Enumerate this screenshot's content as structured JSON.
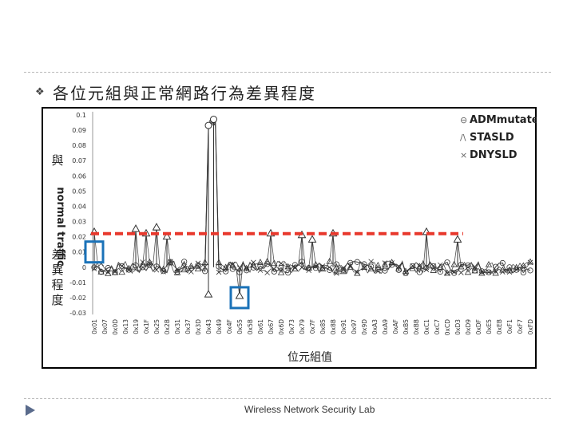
{
  "slide": {
    "title": "各位元組與正常網路行為差異程度",
    "footer": "Wireless Network Security Lab"
  },
  "colors": {
    "threshold_line": "#e8382c",
    "highlight_box": "#1a72b8",
    "series": "#333333",
    "footer_arrow": "#5a6b8c"
  },
  "chart_data": {
    "type": "line",
    "xlabel": "位元組值",
    "ylabel_lines": [
      "與",
      "normal traffic",
      "差",
      "異",
      "程",
      "度"
    ],
    "ylim": [
      -0.03,
      0.1
    ],
    "yticks": [
      "0.1",
      "0.09",
      "0.08",
      "0.07",
      "0.06",
      "0.05",
      "0.04",
      "0.03",
      "0.02",
      "0.01",
      "0",
      "-0.01",
      "-0.02",
      "-0.03"
    ],
    "ytick_values": [
      0.1,
      0.09,
      0.08,
      0.07,
      0.06,
      0.05,
      0.04,
      0.03,
      0.02,
      0.01,
      0,
      -0.01,
      -0.02,
      -0.03
    ],
    "xticks": [
      "0x01",
      "0x07",
      "0x0D",
      "0x13",
      "0x19",
      "0x1F",
      "0x25",
      "0x2B",
      "0x31",
      "0x37",
      "0x3D",
      "0x43",
      "0x49",
      "0x4F",
      "0x55",
      "0x5B",
      "0x61",
      "0x67",
      "0x6D",
      "0x73",
      "0x79",
      "0x7F",
      "0x85",
      "0x8B",
      "0x91",
      "0x97",
      "0x9D",
      "0xA3",
      "0xA9",
      "0xAF",
      "0xB5",
      "0xBB",
      "0xC1",
      "0xC7",
      "0xCD",
      "0xD3",
      "0xD9",
      "0xDF",
      "0xE5",
      "0xEB",
      "0xF1",
      "0xF7",
      "0xFD"
    ],
    "series": [
      {
        "name": "ADMmutate",
        "marker": "circle"
      },
      {
        "name": "STASLD",
        "marker": "triangle"
      },
      {
        "name": "DNYSLD",
        "marker": "x"
      }
    ],
    "spikes": [
      {
        "x": "0x01",
        "y": 0.023
      },
      {
        "x": "0x19",
        "y": 0.025
      },
      {
        "x": "0x1F",
        "y": 0.022
      },
      {
        "x": "0x25",
        "y": 0.026
      },
      {
        "x": "0x2B",
        "y": 0.02
      },
      {
        "x": "0x43",
        "y": 0.091
      },
      {
        "x": "0x46",
        "y": 0.095
      },
      {
        "x": "0x67",
        "y": 0.022
      },
      {
        "x": "0x79",
        "y": 0.021
      },
      {
        "x": "0x7F",
        "y": 0.018
      },
      {
        "x": "0x8B",
        "y": 0.022
      },
      {
        "x": "0xC1",
        "y": 0.023
      },
      {
        "x": "0xD3",
        "y": 0.018
      },
      {
        "x": "0x55",
        "y": -0.019
      },
      {
        "x": "0x43",
        "y": -0.018
      }
    ],
    "threshold": {
      "y": 0.022,
      "x_start": "0x01",
      "x_end": "0xD9"
    },
    "highlights": [
      {
        "x": "0x01",
        "y": 0.01
      },
      {
        "x": "0x55",
        "y": -0.02
      }
    ],
    "grid": false,
    "legend_position": "top-right"
  }
}
